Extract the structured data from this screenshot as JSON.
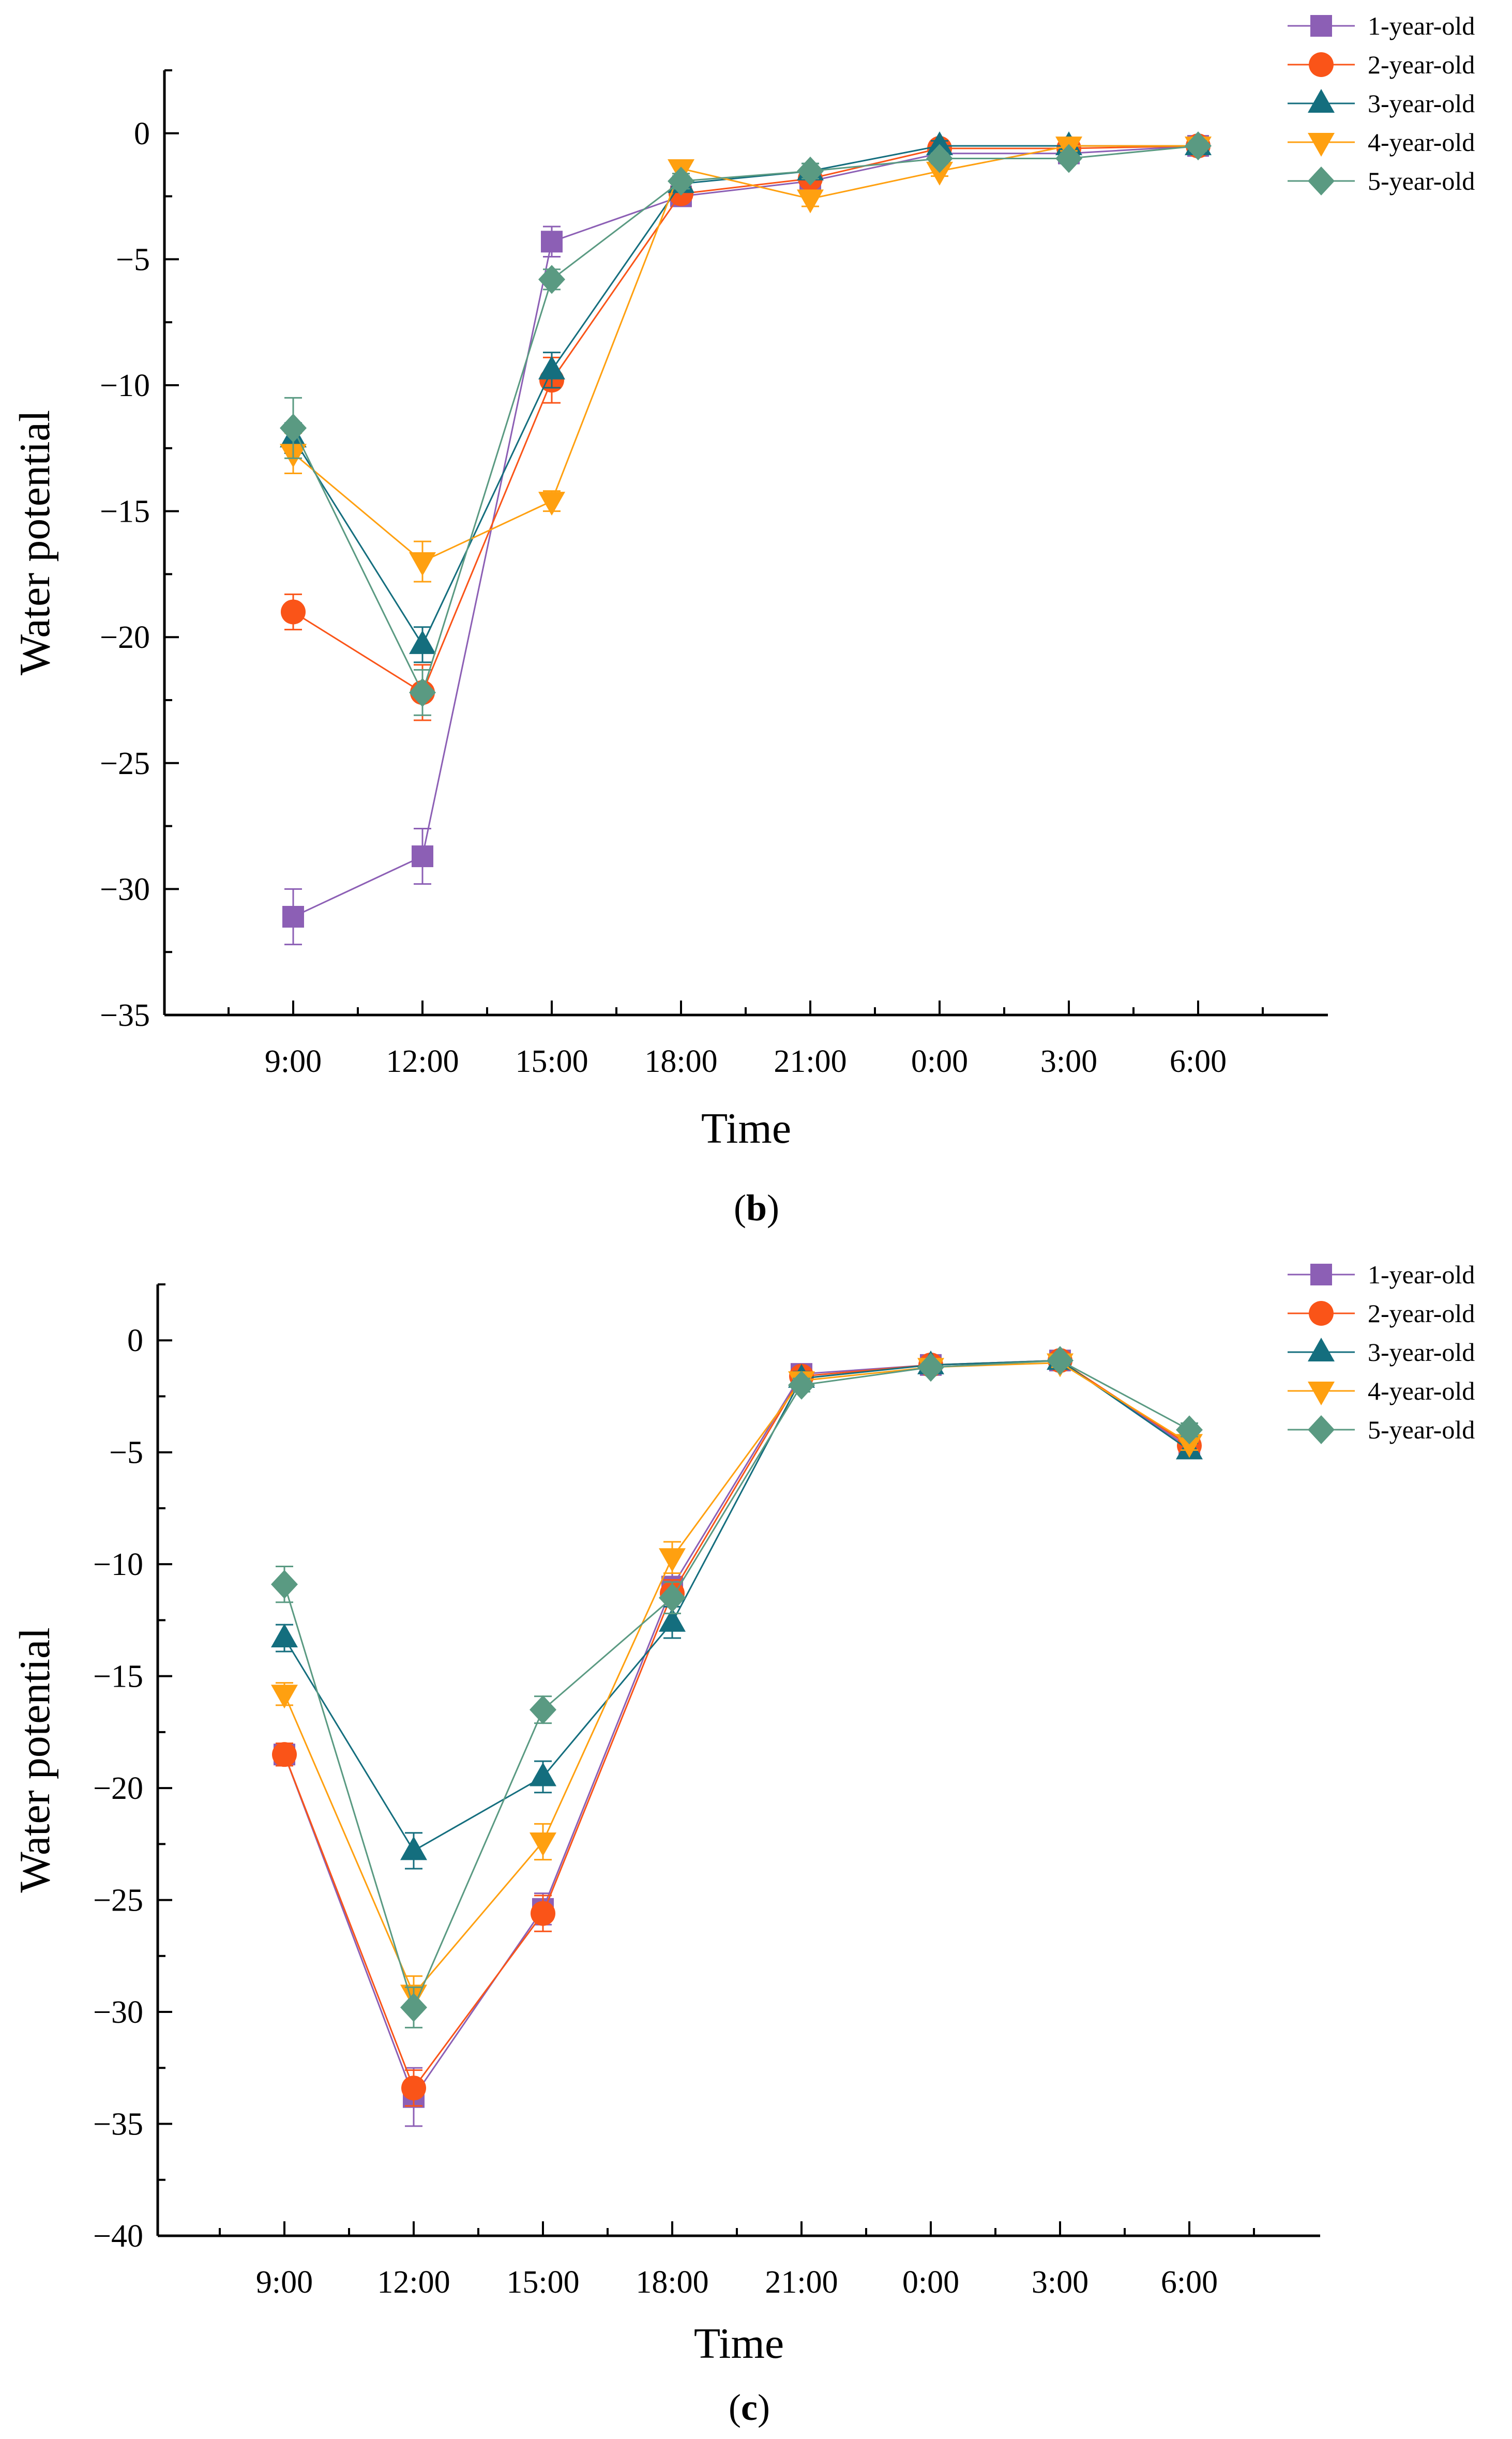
{
  "chart_data": [
    {
      "type": "line",
      "panel_label": "b",
      "xlabel": "Time",
      "ylabel": "Water potential",
      "categories": [
        "9:00",
        "12:00",
        "15:00",
        "18:00",
        "21:00",
        "0:00",
        "3:00",
        "6:00"
      ],
      "ylim": [
        -35,
        2.5
      ],
      "yticks": [
        0,
        -5,
        -10,
        -15,
        -20,
        -25,
        -30,
        -35
      ],
      "ytick_labels": [
        "0",
        "−5",
        "−10",
        "−15",
        "−20",
        "−25",
        "−30",
        "−35"
      ],
      "legend_position": "top-right",
      "series": [
        {
          "name": "1-year-old",
          "marker": "square",
          "color": "#8c5fb5",
          "values": [
            -31.1,
            -28.7,
            -4.3,
            -2.5,
            -1.9,
            -0.8,
            -0.8,
            -0.5
          ],
          "errors": [
            1.1,
            1.1,
            0.6,
            0.3,
            0.3,
            0.2,
            0.2,
            0.2
          ]
        },
        {
          "name": "2-year-old",
          "marker": "circle",
          "color": "#fa5418",
          "values": [
            -19.0,
            -22.2,
            -9.8,
            -2.4,
            -1.8,
            -0.6,
            -0.6,
            -0.5
          ],
          "errors": [
            0.7,
            1.1,
            0.9,
            0.3,
            0.3,
            0.2,
            0.2,
            0.2
          ]
        },
        {
          "name": "3-year-old",
          "marker": "triangle-up",
          "color": "#146e7e",
          "values": [
            -12.1,
            -20.3,
            -9.4,
            -2.0,
            -1.5,
            -0.5,
            -0.5,
            -0.5
          ],
          "errors": [
            0.6,
            0.7,
            0.7,
            0.3,
            0.3,
            0.2,
            0.2,
            0.2
          ]
        },
        {
          "name": "4-year-old",
          "marker": "triangle-down",
          "color": "#ffa010",
          "values": [
            -12.7,
            -17.0,
            -14.6,
            -1.4,
            -2.6,
            -1.5,
            -0.5,
            -0.5
          ],
          "errors": [
            0.8,
            0.8,
            0.4,
            0.2,
            0.3,
            0.2,
            0.2,
            0.2
          ]
        },
        {
          "name": "5-year-old",
          "marker": "diamond",
          "color": "#5a9a82",
          "values": [
            -11.7,
            -22.2,
            -5.8,
            -1.9,
            -1.5,
            -1.0,
            -1.0,
            -0.5
          ],
          "errors": [
            1.2,
            0.9,
            0.4,
            0.3,
            0.3,
            0.2,
            0.2,
            0.2
          ]
        }
      ]
    },
    {
      "type": "line",
      "panel_label": "c",
      "xlabel": "Time",
      "ylabel": "Water potential",
      "categories": [
        "9:00",
        "12:00",
        "15:00",
        "18:00",
        "21:00",
        "0:00",
        "3:00",
        "6:00"
      ],
      "ylim": [
        -40,
        2.5
      ],
      "yticks": [
        0,
        -5,
        -10,
        -15,
        -20,
        -25,
        -30,
        -35,
        -40
      ],
      "ytick_labels": [
        "0",
        "−5",
        "−10",
        "−15",
        "−20",
        "−25",
        "−30",
        "−35",
        "−40"
      ],
      "legend_position": "top-right",
      "series": [
        {
          "name": "1-year-old",
          "marker": "square",
          "color": "#8c5fb5",
          "values": [
            -18.5,
            -33.8,
            -25.4,
            -11.0,
            -1.5,
            -1.1,
            -0.9,
            -4.8
          ],
          "errors": [
            0.5,
            1.3,
            0.7,
            0.6,
            0.3,
            0.2,
            0.2,
            0.3
          ]
        },
        {
          "name": "2-year-old",
          "marker": "circle",
          "color": "#fa5418",
          "values": [
            -18.5,
            -33.4,
            -25.6,
            -11.3,
            -1.6,
            -1.1,
            -0.9,
            -4.7
          ],
          "errors": [
            0.5,
            0.8,
            0.8,
            0.6,
            0.3,
            0.2,
            0.2,
            0.3
          ]
        },
        {
          "name": "3-year-old",
          "marker": "triangle-up",
          "color": "#146e7e",
          "values": [
            -13.3,
            -22.8,
            -19.5,
            -12.6,
            -1.7,
            -1.1,
            -0.9,
            -4.9
          ],
          "errors": [
            0.6,
            0.8,
            0.7,
            0.7,
            0.3,
            0.2,
            0.2,
            0.3
          ]
        },
        {
          "name": "4-year-old",
          "marker": "triangle-down",
          "color": "#ffa010",
          "values": [
            -15.8,
            -29.2,
            -22.4,
            -9.7,
            -1.8,
            -1.2,
            -1.0,
            -4.6
          ],
          "errors": [
            0.5,
            0.8,
            0.8,
            0.7,
            0.3,
            0.2,
            0.2,
            0.3
          ]
        },
        {
          "name": "5-year-old",
          "marker": "diamond",
          "color": "#5a9a82",
          "values": [
            -10.9,
            -29.8,
            -16.5,
            -11.5,
            -2.0,
            -1.2,
            -0.9,
            -4.0
          ],
          "errors": [
            0.8,
            0.9,
            0.6,
            0.7,
            0.3,
            0.2,
            0.2,
            0.3
          ]
        }
      ]
    }
  ]
}
